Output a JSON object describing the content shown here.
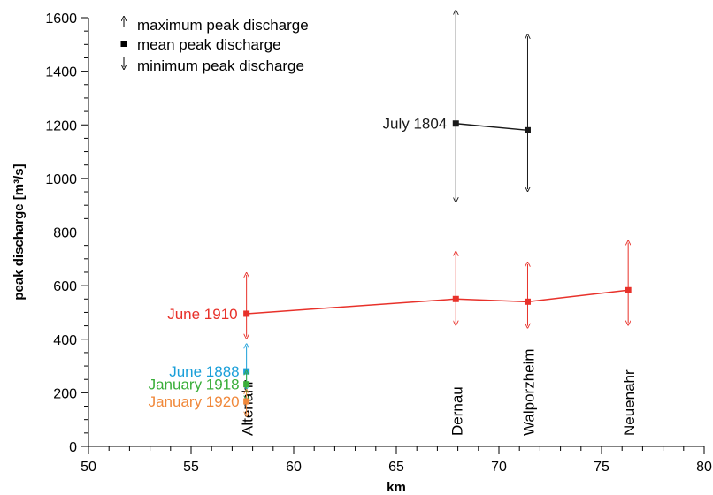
{
  "chart_data": {
    "type": "line",
    "xlabel": "km",
    "ylabel": "peak discharge [m³/s]",
    "xlim": [
      50,
      80
    ],
    "ylim": [
      0,
      1600
    ],
    "x_ticks": [
      50,
      55,
      60,
      65,
      70,
      75,
      80
    ],
    "y_ticks": [
      0,
      200,
      400,
      600,
      800,
      1000,
      1200,
      1400,
      1600
    ],
    "legend": {
      "position": "top-left",
      "entries": [
        "maximum peak discharge",
        "mean peak discharge",
        "minimum peak discharge"
      ]
    },
    "locations": [
      {
        "name": "Altenahr",
        "x": 57.7
      },
      {
        "name": "Dernau",
        "x": 67.9
      },
      {
        "name": "Walporzheim",
        "x": 71.4
      },
      {
        "name": "Neuenahr",
        "x": 76.3
      }
    ],
    "series": [
      {
        "name": "July 1804",
        "color": "#1a1a1a",
        "x": [
          67.9,
          71.4
        ],
        "mean": [
          1205,
          1180
        ],
        "max": [
          1620,
          1530
        ],
        "min": [
          920,
          960
        ]
      },
      {
        "name": "June 1910",
        "color": "#e8312a",
        "x": [
          57.7,
          67.9,
          71.4,
          76.3
        ],
        "mean": [
          495,
          550,
          540,
          583
        ],
        "max": [
          640,
          720,
          680,
          760
        ],
        "min": [
          410,
          460,
          450,
          460
        ]
      },
      {
        "name": "June 1888",
        "color": "#1a9fd9",
        "x": [
          57.7
        ],
        "mean": [
          280
        ],
        "max": [
          375
        ],
        "min": [
          220
        ]
      },
      {
        "name": "January 1918",
        "color": "#3aae3a",
        "x": [
          57.7
        ],
        "mean": [
          232
        ],
        "max": [
          275
        ],
        "min": [
          180
        ]
      },
      {
        "name": "January 1920",
        "color": "#f0883a",
        "x": [
          57.7
        ],
        "mean": [
          168
        ],
        "max": [
          205
        ],
        "min": [
          120
        ]
      }
    ]
  }
}
